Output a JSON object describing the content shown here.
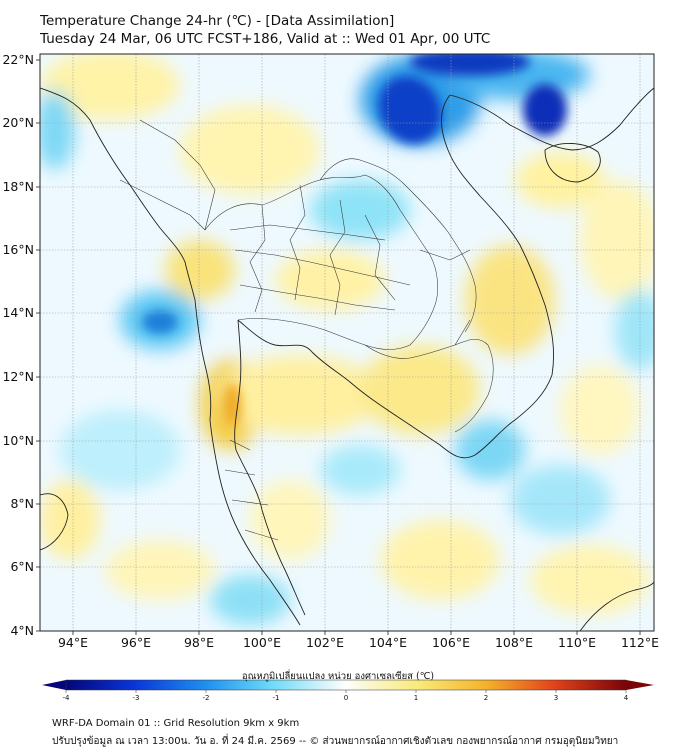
{
  "title_line1": "Temperature Change 24-hr (℃) - [Data Assimilation]",
  "title_line2": "Tuesday 24 Mar, 06 UTC FCST+186, Valid at :: Wed 01 Apr, 00 UTC",
  "lat_labels": [
    "22°N",
    "20°N",
    "18°N",
    "16°N",
    "14°N",
    "12°N",
    "10°N",
    "8°N",
    "6°N",
    "4°N"
  ],
  "lon_labels": [
    "94°E",
    "96°E",
    "98°E",
    "100°E",
    "102°E",
    "104°E",
    "106°E",
    "108°E",
    "110°E",
    "112°E"
  ],
  "colorbar": {
    "title": "อุณหภูมิเปลี่ยนแปลง หน่วย องศาเซลเซียส (℃)",
    "ticks": [
      "-4",
      "-3",
      "-2",
      "-1",
      "0",
      "1",
      "2",
      "3",
      "4"
    ]
  },
  "footer_line1": "WRF-DA Domain 01 :: Grid Resolution 9km x 9km",
  "footer_line2": "ปรับปรุงข้อมูล ณ เวลา 13:00น. วัน อ. ที่ 24 มี.ค. 2569 -- © ส่วนพยากรณ์อากาศเชิงตัวเลข กองพยากรณ์อากาศ กรมอุตุนิยมวิทยา",
  "colors": {
    "cold_strong": "#0a1fb0",
    "cold_mid": "#2aa8f0",
    "cold_light": "#7fe0f8",
    "neutral": "#f0f8ff",
    "warm_light": "#fff6b0",
    "warm_mid": "#f7d94a",
    "warm_strong": "#e88a1a",
    "hot": "#c0120c"
  }
}
